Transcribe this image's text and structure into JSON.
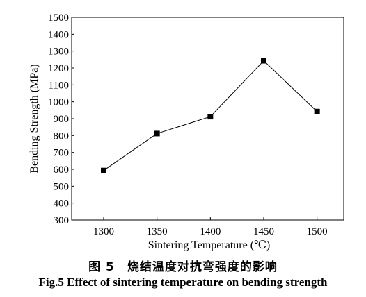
{
  "chart_data": {
    "type": "line",
    "x": [
      1300,
      1350,
      1400,
      1450,
      1500
    ],
    "series": [
      {
        "values": [
          593,
          812,
          912,
          1243,
          942
        ]
      }
    ],
    "xlabel": "Sintering Temperature (℃)",
    "ylabel": "Bending Strength (MPa)",
    "xlim": [
      1270,
      1525
    ],
    "ylim": [
      300,
      1500
    ],
    "xticks": [
      1300,
      1350,
      1400,
      1450,
      1500
    ],
    "yticks": [
      300,
      400,
      500,
      600,
      700,
      800,
      900,
      1000,
      1100,
      1200,
      1300,
      1400,
      1500
    ],
    "marker": "square",
    "line_color": "#000000",
    "grid": false,
    "legend": "none"
  },
  "caption": {
    "cn": "图 5　烧结温度对抗弯强度的影响",
    "en": "Fig.5 Effect of sintering temperature on bending strength"
  }
}
